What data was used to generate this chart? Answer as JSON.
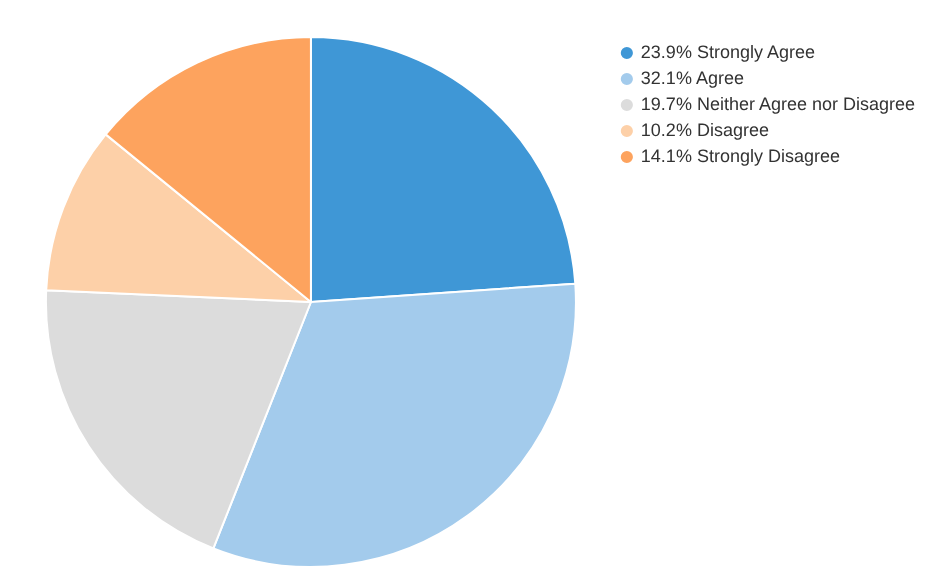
{
  "chart_data": {
    "type": "pie",
    "categories": [
      "23.9% Strongly Agree",
      "32.1% Agree",
      "19.7% Neither Agree nor Disagree",
      "10.2% Disagree",
      "14.1% Strongly Disagree"
    ],
    "values": [
      23.9,
      32.1,
      19.7,
      10.2,
      14.1
    ],
    "colors": [
      "#3f97d6",
      "#a3cbec",
      "#dcdcdc",
      "#fdd0a8",
      "#fda35e"
    ],
    "legend": "top right"
  }
}
